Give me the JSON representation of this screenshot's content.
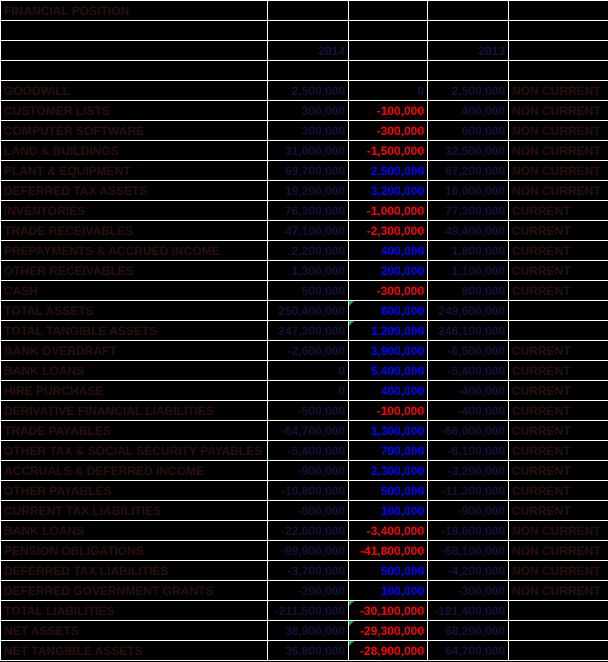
{
  "sheet": {
    "title": "FINANCIAL POSITION",
    "year_col_b": "2014",
    "year_col_d": "2013"
  },
  "colors": {
    "background": "#000000",
    "grid": "#ffffff",
    "label_text": "#2a0f0f",
    "number_text": "#12123a",
    "positive_delta": "#0000ff",
    "negative_delta": "#ff0000",
    "flag_triangle": "#00b050"
  },
  "rows": [
    {
      "label": "GOODWILL",
      "y2014": "2,500,000",
      "delta": "0",
      "y2013": "2,500,000",
      "classification": "NON CURRENT",
      "flag": false
    },
    {
      "label": "CUSTOMER LISTS",
      "y2014": "300,000",
      "delta": "-100,000",
      "y2013": "400,000",
      "classification": "NON CURRENT",
      "flag": false
    },
    {
      "label": "COMPUTER SOFTWARE",
      "y2014": "300,000",
      "delta": "-300,000",
      "y2013": "600,000",
      "classification": "NON CURRENT",
      "flag": false
    },
    {
      "label": "LAND & BUILDINGS",
      "y2014": "31,000,000",
      "delta": "-1,500,000",
      "y2013": "32,500,000",
      "classification": "NON CURRENT",
      "flag": false
    },
    {
      "label": "PLANT & EQUIPMENT",
      "y2014": "69,700,000",
      "delta": "2,500,000",
      "y2013": "67,200,000",
      "classification": "NON CURRENT",
      "flag": false
    },
    {
      "label": "DEFERRED TAX ASSETS",
      "y2014": "19,200,000",
      "delta": "3,200,000",
      "y2013": "16,000,000",
      "classification": "NON CURRENT",
      "flag": false
    },
    {
      "label": "INVENTORIES",
      "y2014": "76,300,000",
      "delta": "-1,000,000",
      "y2013": "77,300,000",
      "classification": "CURRENT",
      "flag": false
    },
    {
      "label": "TRADE RECEIVABLES",
      "y2014": "47,100,000",
      "delta": "-2,300,000",
      "y2013": "49,400,000",
      "classification": "CURRENT",
      "flag": false
    },
    {
      "label": "PREPAYMENTS & ACCRUED INCOME",
      "y2014": "2,200,000",
      "delta": "400,000",
      "y2013": "1,800,000",
      "classification": "CURRENT",
      "flag": false
    },
    {
      "label": "OTHER RECEIVABLES",
      "y2014": "1,300,000",
      "delta": "200,000",
      "y2013": "1,100,000",
      "classification": "CURRENT",
      "flag": false
    },
    {
      "label": "CASH",
      "y2014": "500,000",
      "delta": "-300,000",
      "y2013": "800,000",
      "classification": "CURRENT",
      "flag": false
    },
    {
      "label": "TOTAL ASSETS",
      "y2014": "250,400,000",
      "delta": "800,000",
      "y2013": "249,600,000",
      "classification": "",
      "flag": true
    },
    {
      "label": "TOTAL TANGIBLE ASSETS",
      "y2014": "247,300,000",
      "delta": "1,200,000",
      "y2013": "246,100,000",
      "classification": "",
      "flag": true
    },
    {
      "label": "BANK OVERDRAFT",
      "y2014": "-2,600,000",
      "delta": "3,900,000",
      "y2013": "-6,500,000",
      "classification": "CURRENT",
      "flag": false
    },
    {
      "label": "BANK LOANS",
      "y2014": "0",
      "delta": "5,400,000",
      "y2013": "-5,400,000",
      "classification": "CURRENT",
      "flag": false
    },
    {
      "label": "HIRE PURCHASE",
      "y2014": "0",
      "delta": "400,000",
      "y2013": "-400,000",
      "classification": "CURRENT",
      "flag": false
    },
    {
      "label": "DERIVATIVE FINANCIAL LIABILITIES",
      "y2014": "-500,000",
      "delta": "-100,000",
      "y2013": "-400,000",
      "classification": "CURRENT",
      "flag": false
    },
    {
      "label": "TRADE PAYABLES",
      "y2014": "-64,700,000",
      "delta": "1,300,000",
      "y2013": "-66,000,000",
      "classification": "CURRENT",
      "flag": false
    },
    {
      "label": "OTHER TAX & SOCIAL SECURITY PAYABLES",
      "y2014": "-5,400,000",
      "delta": "700,000",
      "y2013": "-6,100,000",
      "classification": "CURRENT",
      "flag": false
    },
    {
      "label": "ACCRUALS & DEFERRED INCOME",
      "y2014": "-900,000",
      "delta": "2,300,000",
      "y2013": "-3,200,000",
      "classification": "CURRENT",
      "flag": false
    },
    {
      "label": "OTHER PAYABLES",
      "y2014": "-10,800,000",
      "delta": "500,000",
      "y2013": "-11,300,000",
      "classification": "CURRENT",
      "flag": false
    },
    {
      "label": "CURRENT TAX LIABILITIES",
      "y2014": "-800,000",
      "delta": "100,000",
      "y2013": "-900,000",
      "classification": "CURRENT",
      "flag": false
    },
    {
      "label": "BANK LOANS",
      "y2014": "-22,000,000",
      "delta": "-3,400,000",
      "y2013": "-18,600,000",
      "classification": "NON CURRENT",
      "flag": false
    },
    {
      "label": "PENSION OBLIGATIONS",
      "y2014": "-99,900,000",
      "delta": "-41,800,000",
      "y2013": "-58,100,000",
      "classification": "NON CURRENT",
      "flag": false
    },
    {
      "label": "DEFERRED TAX LIABILITIES",
      "y2014": "-3,700,000",
      "delta": "500,000",
      "y2013": "-4,200,000",
      "classification": "NON CURRENT",
      "flag": false
    },
    {
      "label": "DEFERRED GOVERNMENT GRANTS",
      "y2014": "-200,000",
      "delta": "100,000",
      "y2013": "-300,000",
      "classification": "NON CURRENT",
      "flag": false
    },
    {
      "label": "TOTAL LIABILITIES",
      "y2014": "-211,500,000",
      "delta": "-30,100,000",
      "y2013": "-181,400,000",
      "classification": "",
      "flag": true
    },
    {
      "label": "NET ASSETS",
      "y2014": "38,900,000",
      "delta": "-29,300,000",
      "y2013": "68,200,000",
      "classification": "",
      "flag": true
    },
    {
      "label": "NET TANGIBLE ASSETS",
      "y2014": "35,800,000",
      "delta": "-28,900,000",
      "y2013": "64,700,000",
      "classification": "",
      "flag": true
    }
  ]
}
